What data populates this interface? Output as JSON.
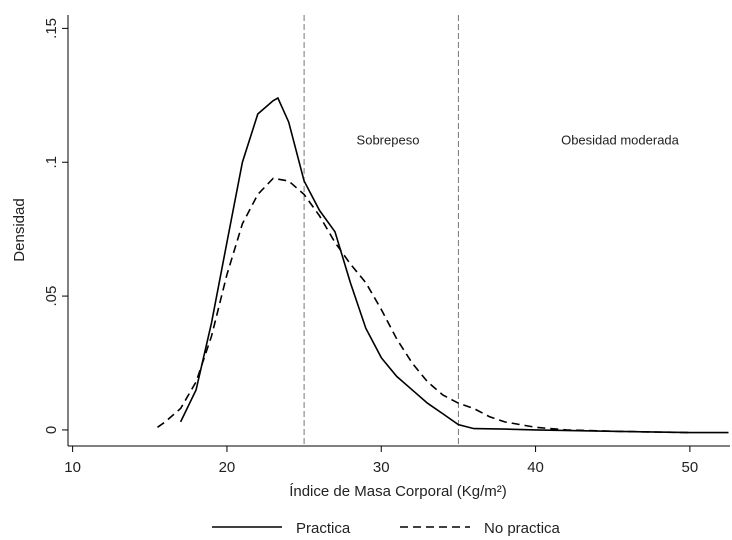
{
  "chart_data": {
    "type": "line",
    "xlabel": "Índice de Masa Corporal (Kg/m²)",
    "ylabel": "Densidad",
    "xlim": [
      9.7,
      52.6
    ],
    "xticks": [
      10,
      20,
      30,
      40,
      50
    ],
    "ylim": [
      -0.006,
      0.155
    ],
    "yticks": [
      0,
      {
        "value": 0.05,
        "label": ".05"
      },
      {
        "value": 0.1,
        "label": ".1"
      },
      {
        "value": 0.15,
        "label": ".15"
      }
    ],
    "xlines": [
      25,
      35
    ],
    "annotations": [
      "Sobrepeso",
      "Obesidad moderada"
    ],
    "legend": "bottom",
    "series": [
      {
        "name": "Practica",
        "color": "#000000",
        "linestyle": "solid",
        "x": [
          17,
          18,
          19,
          20,
          21,
          22,
          23,
          23.3,
          24,
          25,
          26,
          27,
          28,
          29,
          30,
          31,
          32,
          33,
          34,
          35,
          36,
          38,
          40,
          45,
          50,
          52.5
        ],
        "values": [
          0.003,
          0.015,
          0.04,
          0.07,
          0.1,
          0.118,
          0.123,
          0.124,
          0.115,
          0.093,
          0.082,
          0.074,
          0.055,
          0.038,
          0.027,
          0.02,
          0.015,
          0.01,
          0.006,
          0.002,
          0.0005,
          0.0003,
          0,
          -0.0005,
          -0.001,
          -0.001
        ]
      },
      {
        "name": "No practica",
        "color": "#000000",
        "linestyle": "dashed",
        "x": [
          15.5,
          16,
          17,
          18,
          19,
          20,
          21,
          22,
          23,
          24,
          25,
          26,
          27,
          28,
          29,
          30,
          31,
          32,
          33,
          34,
          35,
          36,
          37,
          38,
          40,
          42,
          45,
          50
        ],
        "values": [
          0.001,
          0.003,
          0.008,
          0.018,
          0.035,
          0.058,
          0.077,
          0.088,
          0.094,
          0.093,
          0.088,
          0.08,
          0.07,
          0.062,
          0.055,
          0.045,
          0.034,
          0.025,
          0.018,
          0.013,
          0.01,
          0.008,
          0.005,
          0.003,
          0.001,
          0,
          -0.0005,
          -0.001
        ]
      }
    ]
  }
}
